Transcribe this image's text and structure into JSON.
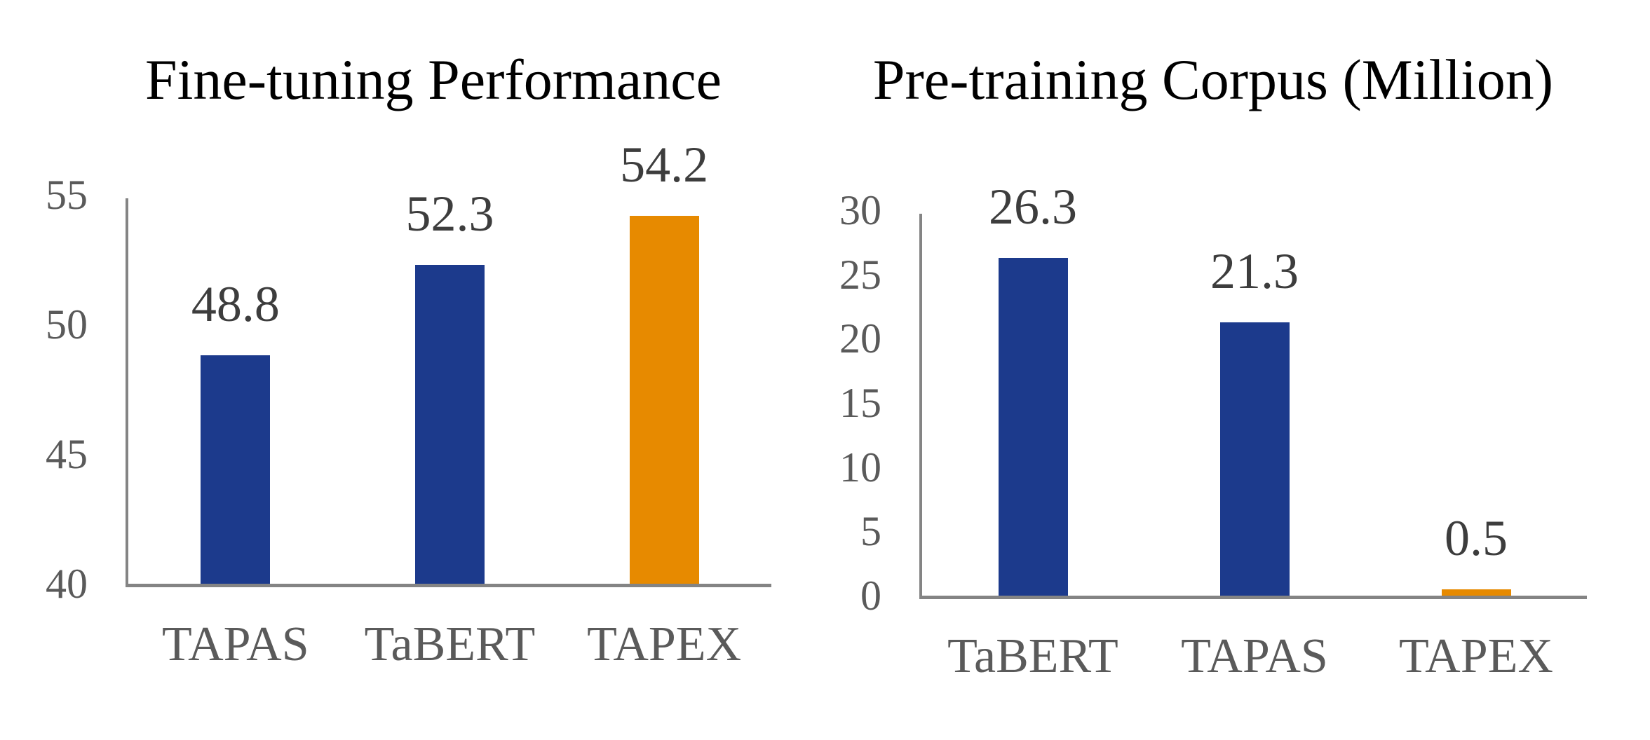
{
  "figure": {
    "background": "#FFFFFF",
    "description": "Two side-by-side bar charts comparing table pre-training models"
  },
  "colors": {
    "bar_blue": "#1C3A8C",
    "bar_orange": "#E78A00",
    "axis_line": "#848484",
    "tick_label": "#5A5A5A",
    "category_label": "#5A5A5A",
    "value_label": "#3D3D3D",
    "title": "#000000"
  },
  "chart_data": [
    {
      "type": "bar",
      "title": "Fine-tuning Performance",
      "categories": [
        "TAPAS",
        "TaBERT",
        "TAPEX"
      ],
      "values": [
        48.8,
        52.3,
        54.2
      ],
      "value_labels": [
        "48.8",
        "52.3",
        "54.2"
      ],
      "bar_colors": [
        "#1C3A8C",
        "#1C3A8C",
        "#E78A00"
      ],
      "ylim": [
        40,
        55
      ],
      "yticks": [
        "55",
        "50",
        "45",
        "40"
      ],
      "xlabel": "",
      "ylabel": "",
      "grid": false,
      "legend": false
    },
    {
      "type": "bar",
      "title": "Pre-training Corpus (Million)",
      "categories": [
        "TaBERT",
        "TAPAS",
        "TAPEX"
      ],
      "values": [
        26.3,
        21.3,
        0.5
      ],
      "value_labels": [
        "26.3",
        "21.3",
        "0.5"
      ],
      "bar_colors": [
        "#1C3A8C",
        "#1C3A8C",
        "#E78A00"
      ],
      "ylim": [
        0,
        30
      ],
      "yticks": [
        "30",
        "25",
        "20",
        "15",
        "10",
        "5",
        "0"
      ],
      "xlabel": "",
      "ylabel": "",
      "grid": false,
      "legend": false
    }
  ]
}
